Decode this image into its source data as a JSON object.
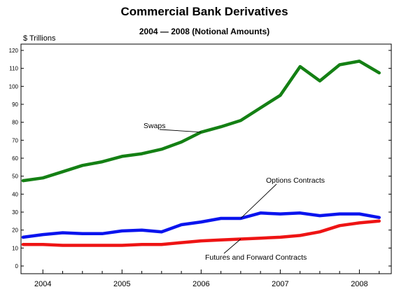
{
  "chart_data": {
    "type": "line",
    "title": "Commercial Bank Derivatives",
    "subtitle": "2004 — 2008 (Notional Amounts)",
    "ylabel": "$ Trillions",
    "ylim": [
      0,
      120
    ],
    "yticks": [
      0,
      10,
      20,
      30,
      40,
      50,
      60,
      70,
      80,
      90,
      100,
      110,
      120
    ],
    "xlim": [
      2003.75,
      2008.35
    ],
    "xticks": [
      {
        "value": 2004,
        "label": "2004"
      },
      {
        "value": 2005,
        "label": "2005"
      },
      {
        "value": 2006,
        "label": "2006"
      },
      {
        "value": 2007,
        "label": "2007"
      },
      {
        "value": 2008,
        "label": "2008"
      }
    ],
    "grid": false,
    "legend": "none",
    "x": [
      2003.75,
      2004.0,
      2004.25,
      2004.5,
      2004.75,
      2005.0,
      2005.25,
      2005.5,
      2005.75,
      2006.0,
      2006.25,
      2006.5,
      2006.75,
      2007.0,
      2007.25,
      2007.5,
      2007.75,
      2008.0,
      2008.25
    ],
    "series": [
      {
        "name": "Swaps",
        "color": "#148014",
        "values": [
          47.5,
          49,
          52.5,
          56,
          58,
          61,
          62.5,
          65,
          69,
          74.5,
          77.5,
          81,
          88,
          95,
          111,
          103,
          112,
          114,
          107.5
        ]
      },
      {
        "name": "Options Contracts",
        "color": "#0a14ee",
        "values": [
          16,
          17.5,
          18.5,
          18,
          18,
          19.5,
          20,
          19,
          23,
          24.5,
          26.5,
          26.5,
          29.5,
          29,
          29.5,
          28,
          29,
          29,
          27
        ]
      },
      {
        "name": "Futures and Forward Contracts",
        "color": "#ee1414",
        "values": [
          12,
          12,
          11.5,
          11.5,
          11.5,
          11.5,
          12,
          12,
          13,
          14,
          14.5,
          15,
          15.5,
          16,
          17,
          19,
          22.5,
          24,
          25
        ]
      }
    ],
    "annotations": [
      {
        "text": "Swaps",
        "series": 0
      },
      {
        "text": "Options Contracts",
        "series": 1
      },
      {
        "text": "Futures and Forward Contracts",
        "series": 2
      }
    ]
  }
}
